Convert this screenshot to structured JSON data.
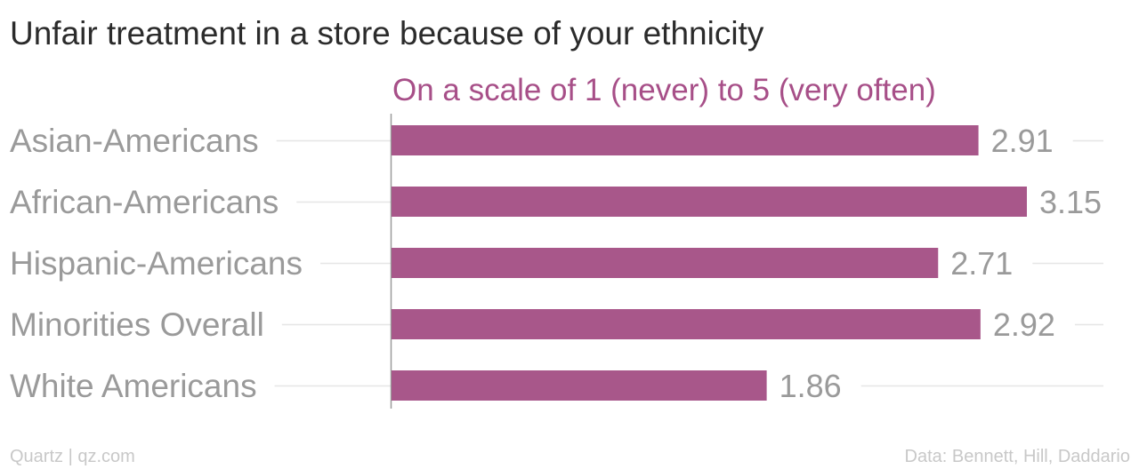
{
  "chart_data": {
    "type": "bar",
    "orientation": "horizontal",
    "title": "Unfair treatment in a store because of your ethnicity",
    "subtitle": "On a scale of 1 (never) to 5 (very often)",
    "categories": [
      "Asian-Americans",
      "African-Americans",
      "Hispanic-Americans",
      "Minorities Overall",
      "White Americans"
    ],
    "values": [
      2.91,
      3.15,
      2.71,
      2.92,
      1.86
    ],
    "value_labels": [
      "2.91",
      "3.15",
      "2.71",
      "2.92",
      "1.86"
    ],
    "xlim": [
      0,
      3.15
    ],
    "grid": true,
    "bar_color": "#a8578a"
  },
  "footer": {
    "source_left": "Quartz | qz.com",
    "source_right": "Data: Bennett, Hill, Daddario"
  }
}
